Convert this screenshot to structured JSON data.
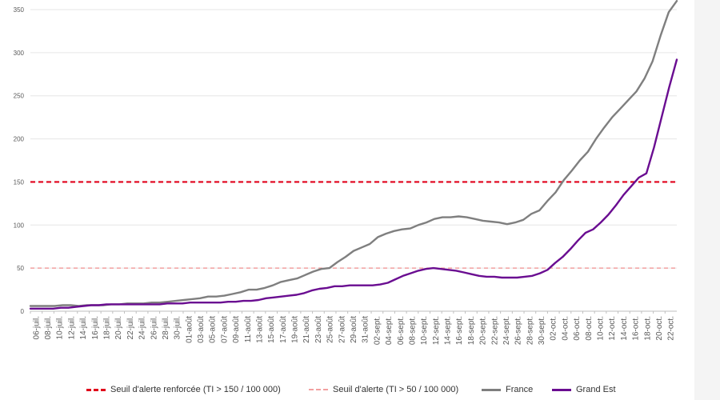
{
  "chart_data": {
    "type": "line",
    "ylim": [
      0,
      350
    ],
    "yticks": [
      "0",
      "50",
      "100",
      "150",
      "200",
      "250",
      "300",
      "350"
    ],
    "xticklabels": [
      "06-juil.",
      "08-juil.",
      "10-juil.",
      "12-juil.",
      "14-juil.",
      "16-juil.",
      "18-juil.",
      "20-juil.",
      "22-juil.",
      "24-juil.",
      "26-juil.",
      "28-juil.",
      "30-juil.",
      "01-août",
      "03-août",
      "05-août",
      "07-août",
      "09-août",
      "11-août",
      "13-août",
      "15-août",
      "17-août",
      "19-août",
      "21-août",
      "23-août",
      "25-août",
      "27-août",
      "29-août",
      "31-août",
      "02-sept.",
      "04-sept.",
      "06-sept.",
      "08-sept.",
      "10-sept.",
      "12-sept.",
      "14-sept.",
      "16-sept.",
      "18-sept.",
      "20-sept.",
      "22-sept.",
      "24-sept.",
      "26-sept.",
      "28-sept.",
      "30-sept.",
      "02-oct.",
      "04-oct.",
      "06-oct.",
      "08-oct.",
      "10-oct.",
      "12-oct.",
      "14-oct.",
      "16-oct.",
      "18-oct.",
      "20-oct.",
      "22-oct."
    ],
    "series": [
      {
        "name": "France",
        "color": "#7f7f7f",
        "values": [
          6,
          6,
          6,
          6,
          7,
          7,
          6,
          7,
          7,
          7,
          8,
          8,
          9,
          9,
          9,
          10,
          10,
          11,
          12,
          13,
          14,
          15,
          17,
          17,
          18,
          20,
          22,
          25,
          25,
          27,
          30,
          34,
          36,
          38,
          42,
          46,
          49,
          50,
          57,
          63,
          70,
          74,
          78,
          86,
          90,
          93,
          95,
          96,
          100,
          103,
          107,
          109,
          109,
          110,
          109,
          107,
          105,
          104,
          103,
          101,
          103,
          106,
          113,
          117,
          128,
          138,
          152,
          163,
          175,
          185,
          200,
          213,
          225,
          235,
          245,
          255,
          270,
          290,
          320,
          347,
          360
        ]
      },
      {
        "name": "Grand Est",
        "color": "#6a0d91",
        "values": [
          3,
          3,
          3,
          3,
          4,
          4,
          5,
          6,
          7,
          7,
          8,
          8,
          8,
          8,
          8,
          8,
          8,
          8,
          9,
          9,
          9,
          10,
          10,
          10,
          10,
          10,
          11,
          11,
          12,
          12,
          13,
          15,
          16,
          17,
          18,
          19,
          21,
          24,
          26,
          27,
          29,
          29,
          30,
          30,
          30,
          30,
          31,
          33,
          37,
          41,
          44,
          47,
          49,
          50,
          49,
          48,
          47,
          45,
          43,
          41,
          40,
          40,
          39,
          39,
          39,
          40,
          41,
          44,
          48,
          56,
          63,
          72,
          82,
          91,
          95,
          103,
          112,
          123,
          135,
          145,
          155,
          160,
          190,
          225,
          260,
          292
        ]
      }
    ],
    "thresholds": [
      {
        "name": "Seuil d'alerte renforcée (TI > 150 / 100 000)",
        "value": 150,
        "color": "#e0001a"
      },
      {
        "name": "Seuil d'alerte (TI > 50 / 100 000)",
        "value": 50,
        "color": "#f2a0a0"
      }
    ],
    "legend_position": "bottom"
  },
  "legend": {
    "items": [
      {
        "label": "Seuil d'alerte renforcée (TI > 150 / 100 000)",
        "style": "red-dashed"
      },
      {
        "label": "Seuil d'alerte (TI > 50 / 100 000)",
        "style": "pink-dashed"
      },
      {
        "label": "France",
        "style": "grey-solid"
      },
      {
        "label": "Grand Est",
        "style": "purple-solid"
      }
    ]
  }
}
